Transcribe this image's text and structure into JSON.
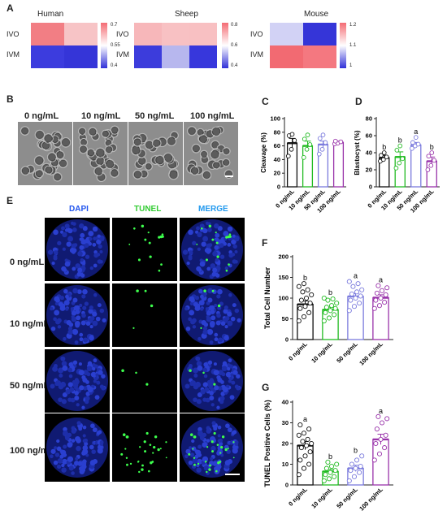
{
  "panels": {
    "A": "A",
    "B": "B",
    "C": "C",
    "D": "D",
    "E": "E",
    "F": "F",
    "G": "G"
  },
  "heatmaps": [
    {
      "title": "Human",
      "rows": [
        "IVO",
        "IVM"
      ],
      "scale_labels": [
        "0.7",
        "0.55",
        "0.4"
      ],
      "cells": [
        [
          "#f27e84",
          "#f7c4c6"
        ],
        [
          "#3c3cde",
          "#3535d8"
        ]
      ],
      "scale_colors": [
        "#f46c74",
        "#ffffff",
        "#3030d8"
      ]
    },
    {
      "title": "Sheep",
      "rows": [
        "IVO",
        "IVM"
      ],
      "scale_labels": [
        "0.8",
        "0.6",
        "0.4"
      ],
      "cells": [
        [
          "#f7b7ba",
          "#f8c1c3",
          "#f8c0c2"
        ],
        [
          "#3c3cdc",
          "#b7b7ee",
          "#3737dc"
        ]
      ],
      "scale_colors": [
        "#f46c74",
        "#ffffff",
        "#3030d8"
      ]
    },
    {
      "title": "Mouse",
      "rows": [
        "IVO",
        "IVM"
      ],
      "scale_labels": [
        "1.2",
        "1.1",
        "1"
      ],
      "cells": [
        [
          "#d2d2f5",
          "#3535d8"
        ],
        [
          "#f26a72",
          "#f47880"
        ]
      ],
      "scale_colors": [
        "#f46c74",
        "#ffffff",
        "#3030d8"
      ]
    }
  ],
  "groups": [
    "0 ng/mL",
    "10 ng/mL",
    "50 ng/mL",
    "100 ng/mL"
  ],
  "group_colors": [
    "#111111",
    "#22bb22",
    "#7b7bdd",
    "#9933aa"
  ],
  "stain_labels": [
    "DAPI",
    "TUNEL",
    "MERGE"
  ],
  "scale_bar_icon": "scale-bar",
  "chart_data": [
    {
      "panel": "C",
      "type": "bar",
      "ylabel": "Cleavage (%)",
      "ylim": [
        0,
        100
      ],
      "yticks": [
        0,
        20,
        40,
        60,
        80,
        100
      ],
      "categories": [
        "0 ng/mL",
        "10 ng/mL",
        "50 ng/mL",
        "100 ng/mL"
      ],
      "values": [
        64,
        60,
        62,
        65
      ],
      "errors": [
        7,
        7,
        5,
        2
      ],
      "points": [
        [
          45,
          55,
          68,
          75,
          77
        ],
        [
          43,
          55,
          62,
          70,
          76
        ],
        [
          48,
          55,
          65,
          71,
          76
        ],
        [
          63,
          64,
          66,
          67
        ]
      ],
      "sig": [
        "",
        "",
        "",
        ""
      ]
    },
    {
      "panel": "D",
      "type": "bar",
      "ylabel": "Blastocyst (%)",
      "ylim": [
        0,
        80
      ],
      "yticks": [
        0,
        20,
        40,
        60,
        80
      ],
      "categories": [
        "0 ng/mL",
        "10 ng/mL",
        "50 ng/mL",
        "100 ng/mL"
      ],
      "values": [
        34,
        35,
        49,
        30
      ],
      "errors": [
        3,
        6,
        3,
        5
      ],
      "points": [
        [
          30,
          32,
          35,
          37,
          40
        ],
        [
          22,
          28,
          33,
          43,
          48
        ],
        [
          45,
          48,
          50,
          52,
          58
        ],
        [
          20,
          25,
          31,
          36,
          40
        ]
      ],
      "sig": [
        "b",
        "b",
        "a",
        "b"
      ]
    },
    {
      "panel": "F",
      "type": "bar",
      "ylabel": "Total Cell Number",
      "ylim": [
        0,
        200
      ],
      "yticks": [
        0,
        50,
        100,
        150,
        200
      ],
      "categories": [
        "0 ng/mL",
        "10 ng/mL",
        "50 ng/mL",
        "100 ng/mL"
      ],
      "values": [
        85,
        72,
        104,
        101
      ],
      "errors": [
        8,
        6,
        7,
        7
      ],
      "points": [
        [
          45,
          55,
          65,
          75,
          80,
          88,
          95,
          100,
          108,
          115,
          120,
          128,
          135
        ],
        [
          45,
          52,
          60,
          65,
          70,
          75,
          78,
          82,
          88,
          95,
          98,
          100
        ],
        [
          70,
          80,
          88,
          95,
          100,
          105,
          110,
          115,
          120,
          128,
          135,
          140
        ],
        [
          75,
          82,
          90,
          95,
          100,
          108,
          112,
          118,
          125,
          130
        ]
      ],
      "sig": [
        "b",
        "b",
        "a",
        "a"
      ]
    },
    {
      "panel": "G",
      "type": "bar",
      "ylabel": "TUNEL Positive Cells (%)",
      "ylim": [
        0,
        40
      ],
      "yticks": [
        0,
        10,
        20,
        30,
        40
      ],
      "categories": [
        "0 ng/mL",
        "10 ng/mL",
        "50 ng/mL",
        "100 ng/mL"
      ],
      "values": [
        19,
        6.5,
        8,
        22
      ],
      "errors": [
        2,
        1,
        1.5,
        2.5
      ],
      "points": [
        [
          5,
          8,
          10,
          12,
          14,
          16,
          18,
          19,
          20,
          21,
          22,
          24,
          25,
          27,
          29
        ],
        [
          2,
          3,
          4,
          5,
          6,
          7,
          8,
          9,
          10,
          11
        ],
        [
          2,
          4,
          6,
          7,
          8,
          9,
          10,
          12,
          14
        ],
        [
          12,
          15,
          18,
          20,
          22,
          24,
          27,
          30,
          32,
          33
        ]
      ],
      "sig": [
        "a",
        "b",
        "b",
        "a"
      ]
    }
  ]
}
